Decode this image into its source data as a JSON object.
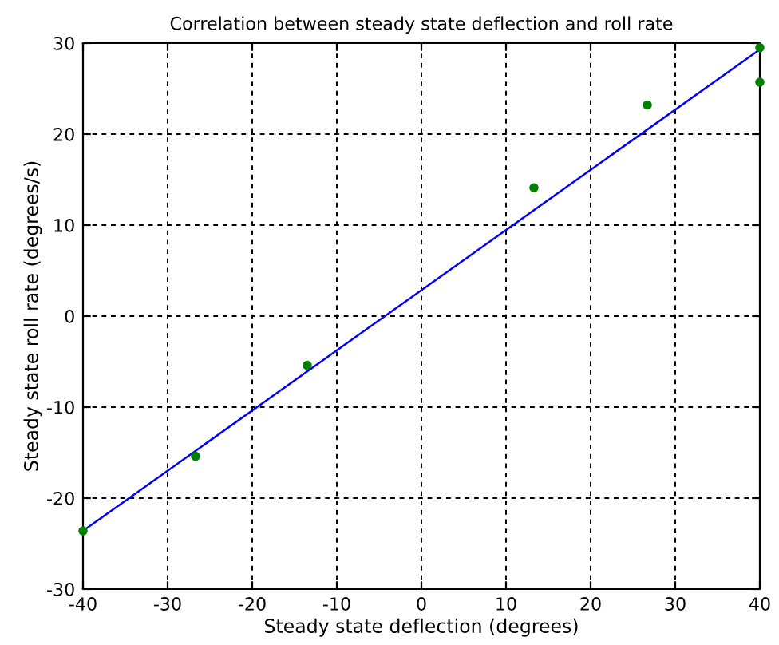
{
  "chart_data": {
    "type": "scatter",
    "title": "Correlation between steady state deflection and roll rate",
    "xlabel": "Steady state deflection (degrees)",
    "ylabel": "Steady state roll rate (degrees/s)",
    "series": [
      {
        "color": "#008000",
        "marker": "circle",
        "x": [
          -40,
          -26.7,
          -13.5,
          13.3,
          26.7,
          40,
          40
        ],
        "values": [
          -23.6,
          -15.4,
          -5.4,
          14.1,
          23.2,
          29.5,
          25.7
        ]
      },
      {
        "type": "line",
        "color": "#0000ff",
        "marker": "none",
        "line_style": "solid",
        "x": [
          -40,
          40
        ],
        "values": [
          -23.6,
          29.3
        ]
      }
    ],
    "xlim": [
      -40,
      40
    ],
    "xticks": [
      -40,
      -30,
      -20,
      -10,
      0,
      10,
      20,
      30,
      40
    ],
    "ylim": [
      -30,
      30
    ],
    "yticks": [
      -30,
      -20,
      -10,
      0,
      10,
      20,
      30
    ],
    "grid": true,
    "legend": false
  }
}
